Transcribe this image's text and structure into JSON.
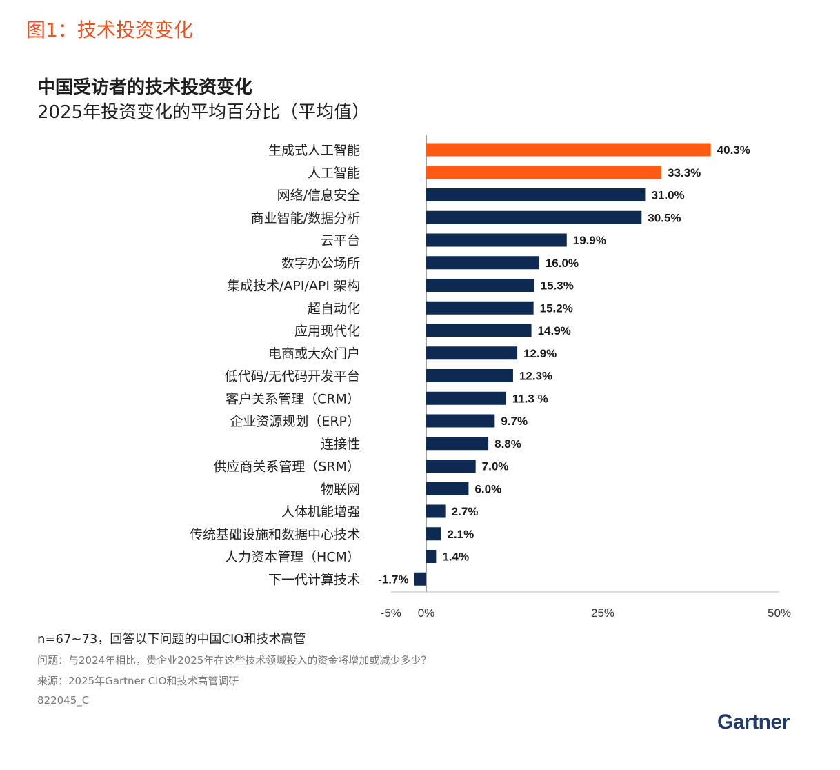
{
  "figure_label": "图1：技术投资变化",
  "footnotes": {
    "n": "n=67~73，回答以下问题的中国CIO和技术高管",
    "question": "问题：与2024年相比，贵企业2025年在这些技术领域投入的资金将增加或减少多少？",
    "source": "来源：2025年Gartner CIO和技术高管调研",
    "id": "822045_C"
  },
  "logo": "Gartner",
  "colors": {
    "highlight": "#ff5a13",
    "default": "#0f2a52",
    "axis": "#555555"
  },
  "chart_data": {
    "type": "bar",
    "orientation": "horizontal",
    "title": "中国受访者的技术投资变化",
    "subtitle": "2025年投资变化的平均百分比（平均值）",
    "xlim": [
      -5,
      50
    ],
    "xticks": [
      -5,
      0,
      25,
      50
    ],
    "xtick_labels": [
      "-5%",
      "0%",
      "25%",
      "50%"
    ],
    "categories": [
      "生成式人工智能",
      "人工智能",
      "网络/信息安全",
      "商业智能/数据分析",
      "云平台",
      "数字办公场所",
      "集成技术/API/API 架构",
      "超自动化",
      "应用现代化",
      "电商或大众门户",
      "低代码/无代码开发平台",
      "客户关系管理（CRM）",
      "企业资源规划（ERP）",
      "连接性",
      "供应商关系管理（SRM）",
      "物联网",
      "人体机能增强",
      "传统基础设施和数据中心技术",
      "人力资本管理（HCM）",
      "下一代计算技术"
    ],
    "values": [
      40.3,
      33.3,
      31.0,
      30.5,
      19.9,
      16.0,
      15.3,
      15.2,
      14.9,
      12.9,
      12.3,
      11.3,
      9.7,
      8.8,
      7.0,
      6.0,
      2.7,
      2.1,
      1.4,
      -1.7
    ],
    "value_labels": [
      "40.3%",
      "33.3%",
      "31.0%",
      "30.5%",
      "19.9%",
      "16.0%",
      "15.3%",
      "15.2%",
      "14.9%",
      "12.9%",
      "12.3%",
      "11.3 %",
      "9.7%",
      "8.8%",
      "7.0%",
      "6.0%",
      "2.7%",
      "2.1%",
      "1.4%",
      "-1.7%"
    ],
    "highlighted": [
      0,
      1
    ]
  }
}
